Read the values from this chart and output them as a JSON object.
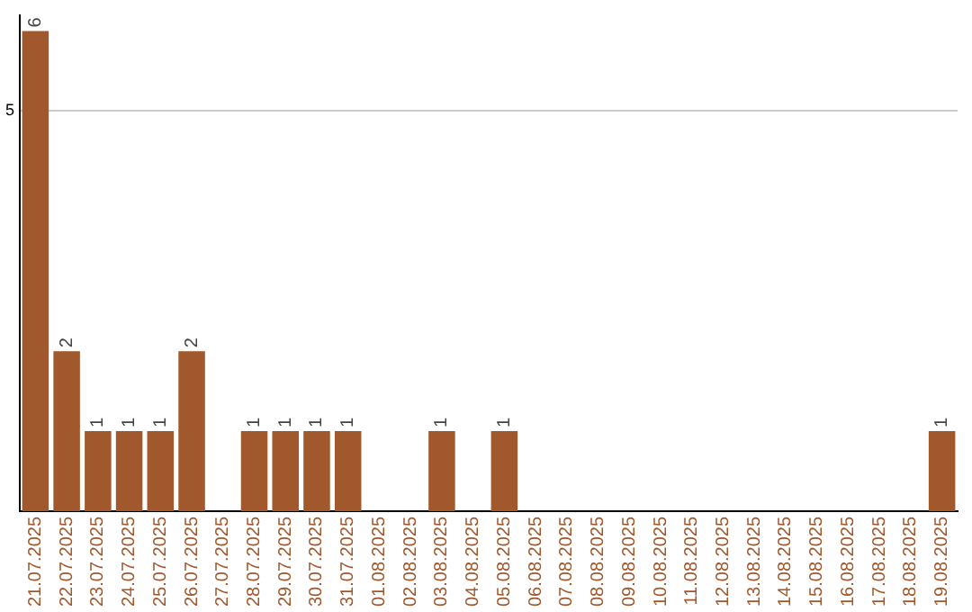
{
  "chart_data": {
    "type": "bar",
    "categories": [
      "21.07.2025",
      "22.07.2025",
      "23.07.2025",
      "24.07.2025",
      "25.07.2025",
      "26.07.2025",
      "27.07.2025",
      "28.07.2025",
      "29.07.2025",
      "30.07.2025",
      "31.07.2025",
      "01.08.2025",
      "02.08.2025",
      "03.08.2025",
      "04.08.2025",
      "05.08.2025",
      "06.08.2025",
      "07.08.2025",
      "08.08.2025",
      "09.08.2025",
      "10.08.2025",
      "11.08.2025",
      "12.08.2025",
      "13.08.2025",
      "14.08.2025",
      "15.08.2025",
      "16.08.2025",
      "17.08.2025",
      "18.08.2025",
      "19.08.2025"
    ],
    "values": [
      6,
      2,
      1,
      1,
      1,
      2,
      0,
      1,
      1,
      1,
      1,
      0,
      0,
      1,
      0,
      1,
      0,
      0,
      0,
      0,
      0,
      0,
      0,
      0,
      0,
      0,
      0,
      0,
      0,
      1
    ],
    "value_labels": [
      "6",
      "2",
      "1",
      "1",
      "1",
      "2",
      null,
      "1",
      "1",
      "1",
      "1",
      null,
      null,
      "1",
      null,
      "1",
      null,
      null,
      null,
      null,
      null,
      null,
      null,
      null,
      null,
      null,
      null,
      null,
      null,
      "1"
    ],
    "color": "#a0582c",
    "ylim": [
      0,
      6.2
    ],
    "yticks": [
      5
    ],
    "grid": "y"
  }
}
